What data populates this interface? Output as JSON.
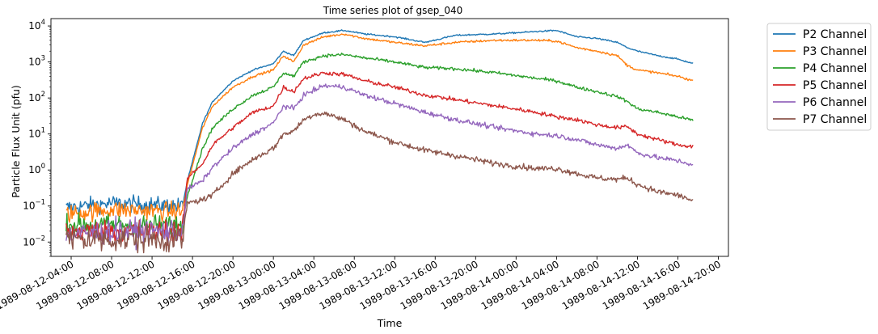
{
  "chart_data": {
    "type": "line",
    "title": "Time series plot of gsep_040",
    "xlabel": "Time",
    "ylabel": "Particle Flux Unit (pfu)",
    "yscale": "log",
    "ylim": [
      0.004,
      16000
    ],
    "xlim": [
      "1989-08-12T02:00:00",
      "1989-08-14T21:00:00"
    ],
    "grid": false,
    "legend_position": "outside-top-right",
    "x_ticks": [
      "1989-08-12-04:00",
      "1989-08-12-08:00",
      "1989-08-12-12:00",
      "1989-08-12-16:00",
      "1989-08-12-20:00",
      "1989-08-13-00:00",
      "1989-08-13-04:00",
      "1989-08-13-08:00",
      "1989-08-13-12:00",
      "1989-08-13-16:00",
      "1989-08-13-20:00",
      "1989-08-14-00:00",
      "1989-08-14-04:00",
      "1989-08-14-08:00",
      "1989-08-14-12:00",
      "1989-08-14-16:00",
      "1989-08-14-20:00"
    ],
    "x_tick_values": [
      "1989-08-12T04:00:00",
      "1989-08-12T08:00:00",
      "1989-08-12T12:00:00",
      "1989-08-12T16:00:00",
      "1989-08-12T20:00:00",
      "1989-08-13T00:00:00",
      "1989-08-13T04:00:00",
      "1989-08-13T08:00:00",
      "1989-08-13T12:00:00",
      "1989-08-13T16:00:00",
      "1989-08-13T20:00:00",
      "1989-08-14T00:00:00",
      "1989-08-14T04:00:00",
      "1989-08-14T08:00:00",
      "1989-08-14T12:00:00",
      "1989-08-14T16:00:00",
      "1989-08-14T20:00:00"
    ],
    "y_ticks": [
      {
        "value": 0.01,
        "base": "10",
        "exp": "−2"
      },
      {
        "value": 0.1,
        "base": "10",
        "exp": "−1"
      },
      {
        "value": 1,
        "base": "10",
        "exp": "0"
      },
      {
        "value": 10,
        "base": "10",
        "exp": "1"
      },
      {
        "value": 100,
        "base": "10",
        "exp": "2"
      },
      {
        "value": 1000,
        "base": "10",
        "exp": "3"
      },
      {
        "value": 10000,
        "base": "10",
        "exp": "4"
      }
    ],
    "series": [
      {
        "name": "P2 Channel",
        "color": "#1f77b4",
        "noisy_until": "1989-08-12T15:10:00",
        "points": [
          [
            "1989-08-12T03:30:00",
            0.09
          ],
          [
            "1989-08-12T08:00:00",
            0.12
          ],
          [
            "1989-08-12T15:00:00",
            0.1
          ],
          [
            "1989-08-12T15:30:00",
            0.5
          ],
          [
            "1989-08-12T17:00:00",
            20
          ],
          [
            "1989-08-12T18:00:00",
            80
          ],
          [
            "1989-08-12T20:00:00",
            300
          ],
          [
            "1989-08-12T22:00:00",
            600
          ],
          [
            "1989-08-13T00:00:00",
            900
          ],
          [
            "1989-08-13T01:00:00",
            2000
          ],
          [
            "1989-08-13T02:00:00",
            1500
          ],
          [
            "1989-08-13T03:00:00",
            4000
          ],
          [
            "1989-08-13T05:00:00",
            6500
          ],
          [
            "1989-08-13T07:00:00",
            7500
          ],
          [
            "1989-08-13T09:00:00",
            6000
          ],
          [
            "1989-08-13T12:00:00",
            5000
          ],
          [
            "1989-08-13T15:00:00",
            3500
          ],
          [
            "1989-08-13T18:00:00",
            5500
          ],
          [
            "1989-08-13T22:00:00",
            6000
          ],
          [
            "1989-08-14T02:00:00",
            7000
          ],
          [
            "1989-08-14T04:00:00",
            7500
          ],
          [
            "1989-08-14T06:00:00",
            5000
          ],
          [
            "1989-08-14T08:00:00",
            4500
          ],
          [
            "1989-08-14T10:00:00",
            3500
          ],
          [
            "1989-08-14T11:00:00",
            2500
          ],
          [
            "1989-08-14T12:00:00",
            2000
          ],
          [
            "1989-08-14T14:00:00",
            1500
          ],
          [
            "1989-08-14T16:00:00",
            1200
          ],
          [
            "1989-08-14T17:30:00",
            900
          ]
        ]
      },
      {
        "name": "P3 Channel",
        "color": "#ff7f0e",
        "noisy_until": "1989-08-12T15:10:00",
        "points": [
          [
            "1989-08-12T03:30:00",
            0.06
          ],
          [
            "1989-08-12T08:00:00",
            0.08
          ],
          [
            "1989-08-12T15:00:00",
            0.07
          ],
          [
            "1989-08-12T15:30:00",
            0.4
          ],
          [
            "1989-08-12T17:00:00",
            15
          ],
          [
            "1989-08-12T18:00:00",
            60
          ],
          [
            "1989-08-12T20:00:00",
            200
          ],
          [
            "1989-08-12T22:00:00",
            400
          ],
          [
            "1989-08-13T00:00:00",
            600
          ],
          [
            "1989-08-13T01:00:00",
            1500
          ],
          [
            "1989-08-13T02:00:00",
            1000
          ],
          [
            "1989-08-13T03:00:00",
            3000
          ],
          [
            "1989-08-13T05:00:00",
            5000
          ],
          [
            "1989-08-13T07:00:00",
            6000
          ],
          [
            "1989-08-13T09:00:00",
            4500
          ],
          [
            "1989-08-13T12:00:00",
            3500
          ],
          [
            "1989-08-13T15:00:00",
            2800
          ],
          [
            "1989-08-13T18:00:00",
            3500
          ],
          [
            "1989-08-13T22:00:00",
            4000
          ],
          [
            "1989-08-14T02:00:00",
            4000
          ],
          [
            "1989-08-14T04:00:00",
            3800
          ],
          [
            "1989-08-14T06:00:00",
            2500
          ],
          [
            "1989-08-14T08:00:00",
            2000
          ],
          [
            "1989-08-14T10:00:00",
            1500
          ],
          [
            "1989-08-14T11:00:00",
            800
          ],
          [
            "1989-08-14T12:00:00",
            600
          ],
          [
            "1989-08-14T14:00:00",
            500
          ],
          [
            "1989-08-14T16:00:00",
            400
          ],
          [
            "1989-08-14T17:30:00",
            300
          ]
        ]
      },
      {
        "name": "P4 Channel",
        "color": "#2ca02c",
        "noisy_until": "1989-08-12T15:10:00",
        "points": [
          [
            "1989-08-12T03:30:00",
            0.03
          ],
          [
            "1989-08-12T08:00:00",
            0.03
          ],
          [
            "1989-08-12T15:00:00",
            0.03
          ],
          [
            "1989-08-12T15:30:00",
            0.2
          ],
          [
            "1989-08-12T17:00:00",
            4
          ],
          [
            "1989-08-12T18:00:00",
            15
          ],
          [
            "1989-08-12T20:00:00",
            50
          ],
          [
            "1989-08-12T22:00:00",
            120
          ],
          [
            "1989-08-13T00:00:00",
            200
          ],
          [
            "1989-08-13T01:00:00",
            500
          ],
          [
            "1989-08-13T02:00:00",
            400
          ],
          [
            "1989-08-13T03:00:00",
            1000
          ],
          [
            "1989-08-13T05:00:00",
            1500
          ],
          [
            "1989-08-13T07:00:00",
            1600
          ],
          [
            "1989-08-13T09:00:00",
            1300
          ],
          [
            "1989-08-13T12:00:00",
            1000
          ],
          [
            "1989-08-13T15:00:00",
            700
          ],
          [
            "1989-08-13T18:00:00",
            650
          ],
          [
            "1989-08-13T22:00:00",
            500
          ],
          [
            "1989-08-14T02:00:00",
            350
          ],
          [
            "1989-08-14T04:00:00",
            300
          ],
          [
            "1989-08-14T06:00:00",
            200
          ],
          [
            "1989-08-14T08:00:00",
            150
          ],
          [
            "1989-08-14T10:00:00",
            110
          ],
          [
            "1989-08-14T11:00:00",
            80
          ],
          [
            "1989-08-14T12:00:00",
            50
          ],
          [
            "1989-08-14T14:00:00",
            40
          ],
          [
            "1989-08-14T16:00:00",
            30
          ],
          [
            "1989-08-14T17:30:00",
            24
          ]
        ]
      },
      {
        "name": "P5 Channel",
        "color": "#d62728",
        "noisy_until": "1989-08-12T15:10:00",
        "points": [
          [
            "1989-08-12T03:30:00",
            0.02
          ],
          [
            "1989-08-12T08:00:00",
            0.02
          ],
          [
            "1989-08-12T15:00:00",
            0.02
          ],
          [
            "1989-08-12T15:30:00",
            0.6
          ],
          [
            "1989-08-12T17:00:00",
            1.5
          ],
          [
            "1989-08-12T18:00:00",
            5
          ],
          [
            "1989-08-12T20:00:00",
            15
          ],
          [
            "1989-08-12T22:00:00",
            40
          ],
          [
            "1989-08-13T00:00:00",
            60
          ],
          [
            "1989-08-13T01:00:00",
            200
          ],
          [
            "1989-08-13T02:00:00",
            150
          ],
          [
            "1989-08-13T03:00:00",
            350
          ],
          [
            "1989-08-13T05:00:00",
            500
          ],
          [
            "1989-08-13T07:00:00",
            450
          ],
          [
            "1989-08-13T09:00:00",
            300
          ],
          [
            "1989-08-13T12:00:00",
            200
          ],
          [
            "1989-08-13T15:00:00",
            120
          ],
          [
            "1989-08-13T18:00:00",
            90
          ],
          [
            "1989-08-13T22:00:00",
            60
          ],
          [
            "1989-08-14T02:00:00",
            40
          ],
          [
            "1989-08-14T04:00:00",
            30
          ],
          [
            "1989-08-14T06:00:00",
            25
          ],
          [
            "1989-08-14T08:00:00",
            18
          ],
          [
            "1989-08-14T10:00:00",
            15
          ],
          [
            "1989-08-14T11:00:00",
            16
          ],
          [
            "1989-08-14T12:00:00",
            10
          ],
          [
            "1989-08-14T14:00:00",
            7
          ],
          [
            "1989-08-14T16:00:00",
            5
          ],
          [
            "1989-08-14T17:30:00",
            4.5
          ]
        ]
      },
      {
        "name": "P6 Channel",
        "color": "#9467bd",
        "noisy_until": "1989-08-12T15:10:00",
        "points": [
          [
            "1989-08-12T03:30:00",
            0.015
          ],
          [
            "1989-08-12T08:00:00",
            0.02
          ],
          [
            "1989-08-12T15:00:00",
            0.02
          ],
          [
            "1989-08-12T15:30:00",
            0.3
          ],
          [
            "1989-08-12T17:00:00",
            0.5
          ],
          [
            "1989-08-12T18:00:00",
            1.2
          ],
          [
            "1989-08-12T20:00:00",
            4
          ],
          [
            "1989-08-12T22:00:00",
            10
          ],
          [
            "1989-08-13T00:00:00",
            20
          ],
          [
            "1989-08-13T01:00:00",
            60
          ],
          [
            "1989-08-13T02:00:00",
            50
          ],
          [
            "1989-08-13T03:00:00",
            120
          ],
          [
            "1989-08-13T05:00:00",
            220
          ],
          [
            "1989-08-13T07:00:00",
            200
          ],
          [
            "1989-08-13T09:00:00",
            120
          ],
          [
            "1989-08-13T12:00:00",
            70
          ],
          [
            "1989-08-13T15:00:00",
            40
          ],
          [
            "1989-08-13T18:00:00",
            25
          ],
          [
            "1989-08-13T22:00:00",
            15
          ],
          [
            "1989-08-14T02:00:00",
            10
          ],
          [
            "1989-08-14T04:00:00",
            9
          ],
          [
            "1989-08-14T06:00:00",
            7
          ],
          [
            "1989-08-14T08:00:00",
            5
          ],
          [
            "1989-08-14T10:00:00",
            4
          ],
          [
            "1989-08-14T11:00:00",
            5
          ],
          [
            "1989-08-14T12:00:00",
            3
          ],
          [
            "1989-08-14T14:00:00",
            2.2
          ],
          [
            "1989-08-14T16:00:00",
            1.8
          ],
          [
            "1989-08-14T17:30:00",
            1.4
          ]
        ]
      },
      {
        "name": "P7 Channel",
        "color": "#8c564b",
        "noisy_until": "1989-08-12T15:10:00",
        "points": [
          [
            "1989-08-12T03:30:00",
            0.012
          ],
          [
            "1989-08-12T08:00:00",
            0.012
          ],
          [
            "1989-08-12T15:00:00",
            0.012
          ],
          [
            "1989-08-12T15:30:00",
            0.12
          ],
          [
            "1989-08-12T17:00:00",
            0.15
          ],
          [
            "1989-08-12T18:00:00",
            0.2
          ],
          [
            "1989-08-12T20:00:00",
            0.8
          ],
          [
            "1989-08-12T22:00:00",
            2
          ],
          [
            "1989-08-13T00:00:00",
            4
          ],
          [
            "1989-08-13T01:00:00",
            10
          ],
          [
            "1989-08-13T02:00:00",
            12
          ],
          [
            "1989-08-13T03:00:00",
            25
          ],
          [
            "1989-08-13T04:00:00",
            35
          ],
          [
            "1989-08-13T05:00:00",
            38
          ],
          [
            "1989-08-13T07:00:00",
            25
          ],
          [
            "1989-08-13T09:00:00",
            12
          ],
          [
            "1989-08-13T12:00:00",
            6
          ],
          [
            "1989-08-13T15:00:00",
            3.5
          ],
          [
            "1989-08-13T18:00:00",
            2.5
          ],
          [
            "1989-08-13T22:00:00",
            1.5
          ],
          [
            "1989-08-14T02:00:00",
            1.1
          ],
          [
            "1989-08-14T04:00:00",
            1.1
          ],
          [
            "1989-08-14T06:00:00",
            0.8
          ],
          [
            "1989-08-14T08:00:00",
            0.6
          ],
          [
            "1989-08-14T10:00:00",
            0.55
          ],
          [
            "1989-08-14T11:00:00",
            0.6
          ],
          [
            "1989-08-14T12:00:00",
            0.4
          ],
          [
            "1989-08-14T14:00:00",
            0.25
          ],
          [
            "1989-08-14T16:00:00",
            0.2
          ],
          [
            "1989-08-14T17:30:00",
            0.14
          ]
        ]
      }
    ]
  }
}
